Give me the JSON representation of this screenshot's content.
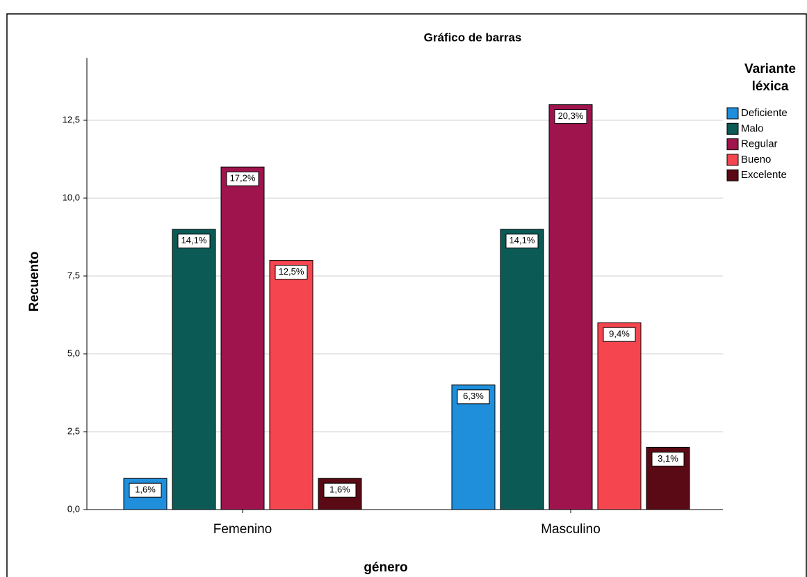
{
  "chart_data": {
    "type": "bar",
    "title": "Gráfico de barras",
    "x_label": "género",
    "y_label": "Recuento",
    "legend_title": [
      "Variante",
      "léxica"
    ],
    "legend_position": "right",
    "categories": [
      "Femenino",
      "Masculino"
    ],
    "series": [
      {
        "name": "Deficiente",
        "color": "#1f8fdc",
        "values": [
          1,
          4
        ],
        "percentages": [
          1.6,
          6.3
        ],
        "percentage_labels": [
          "1,6%",
          "6,3%"
        ]
      },
      {
        "name": "Malo",
        "color": "#0b5a55",
        "values": [
          9,
          9
        ],
        "percentages": [
          14.1,
          14.1
        ],
        "percentage_labels": [
          "14,1%",
          "14,1%"
        ]
      },
      {
        "name": "Regular",
        "color": "#a0144e",
        "values": [
          11,
          13
        ],
        "percentages": [
          17.2,
          20.3
        ],
        "percentage_labels": [
          "17,2%",
          "20,3%"
        ]
      },
      {
        "name": "Bueno",
        "color": "#f5464f",
        "values": [
          8,
          6
        ],
        "percentages": [
          12.5,
          9.4
        ],
        "percentage_labels": [
          "12,5%",
          "9,4%"
        ]
      },
      {
        "name": "Excelente",
        "color": "#5a0a14",
        "values": [
          1,
          2
        ],
        "percentages": [
          1.6,
          3.1
        ],
        "percentage_labels": [
          "1,6%",
          "3,1%"
        ]
      }
    ],
    "ylim": [
      0,
      14.5
    ],
    "yticks": [
      {
        "value": 0,
        "label": "0,0"
      },
      {
        "value": 2.5,
        "label": "2,5"
      },
      {
        "value": 5,
        "label": "5,0"
      },
      {
        "value": 7.5,
        "label": "7,5"
      },
      {
        "value": 10,
        "label": "10,0"
      },
      {
        "value": 12.5,
        "label": "12,5"
      }
    ],
    "grid": true
  }
}
